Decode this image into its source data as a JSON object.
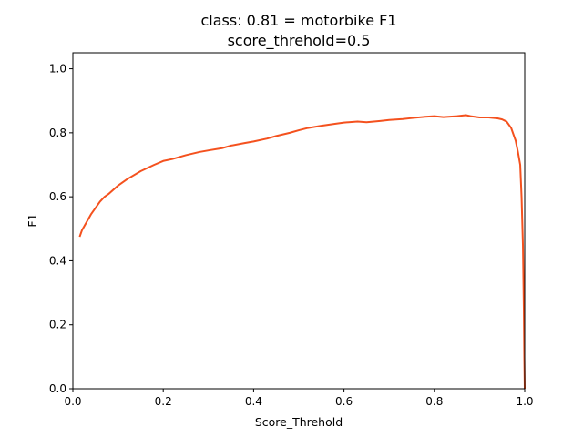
{
  "chart_data": {
    "type": "line",
    "title": "class: 0.81 = motorbike F1",
    "subtitle": "score_threhold=0.5",
    "xlabel": "Score_Threhold",
    "ylabel": "F1",
    "xlim": [
      0.0,
      1.0
    ],
    "ylim": [
      0.0,
      1.05
    ],
    "xticks": [
      "0.0",
      "0.2",
      "0.4",
      "0.6",
      "0.8",
      "1.0"
    ],
    "yticks": [
      "0.0",
      "0.2",
      "0.4",
      "0.6",
      "0.8",
      "1.0"
    ],
    "grid": false,
    "line_color": "#f4511e",
    "series": [
      {
        "x": [
          0.015,
          0.02,
          0.03,
          0.04,
          0.05,
          0.06,
          0.07,
          0.08,
          0.1,
          0.12,
          0.15,
          0.18,
          0.2,
          0.22,
          0.25,
          0.28,
          0.3,
          0.33,
          0.35,
          0.38,
          0.4,
          0.43,
          0.45,
          0.48,
          0.5,
          0.52,
          0.55,
          0.58,
          0.6,
          0.63,
          0.65,
          0.68,
          0.7,
          0.73,
          0.75,
          0.78,
          0.8,
          0.82,
          0.85,
          0.87,
          0.88,
          0.9,
          0.92,
          0.94,
          0.95,
          0.96,
          0.97,
          0.98,
          0.985,
          0.99,
          0.993,
          0.996,
          0.998,
          0.999,
          1.0
        ],
        "y": [
          0.475,
          0.495,
          0.52,
          0.545,
          0.565,
          0.585,
          0.6,
          0.61,
          0.635,
          0.655,
          0.68,
          0.7,
          0.712,
          0.718,
          0.73,
          0.74,
          0.745,
          0.752,
          0.76,
          0.768,
          0.773,
          0.782,
          0.79,
          0.8,
          0.808,
          0.815,
          0.822,
          0.828,
          0.832,
          0.835,
          0.833,
          0.837,
          0.84,
          0.843,
          0.846,
          0.85,
          0.852,
          0.849,
          0.852,
          0.855,
          0.852,
          0.848,
          0.848,
          0.845,
          0.842,
          0.835,
          0.815,
          0.775,
          0.74,
          0.7,
          0.6,
          0.45,
          0.25,
          0.1,
          0.0
        ]
      }
    ]
  }
}
